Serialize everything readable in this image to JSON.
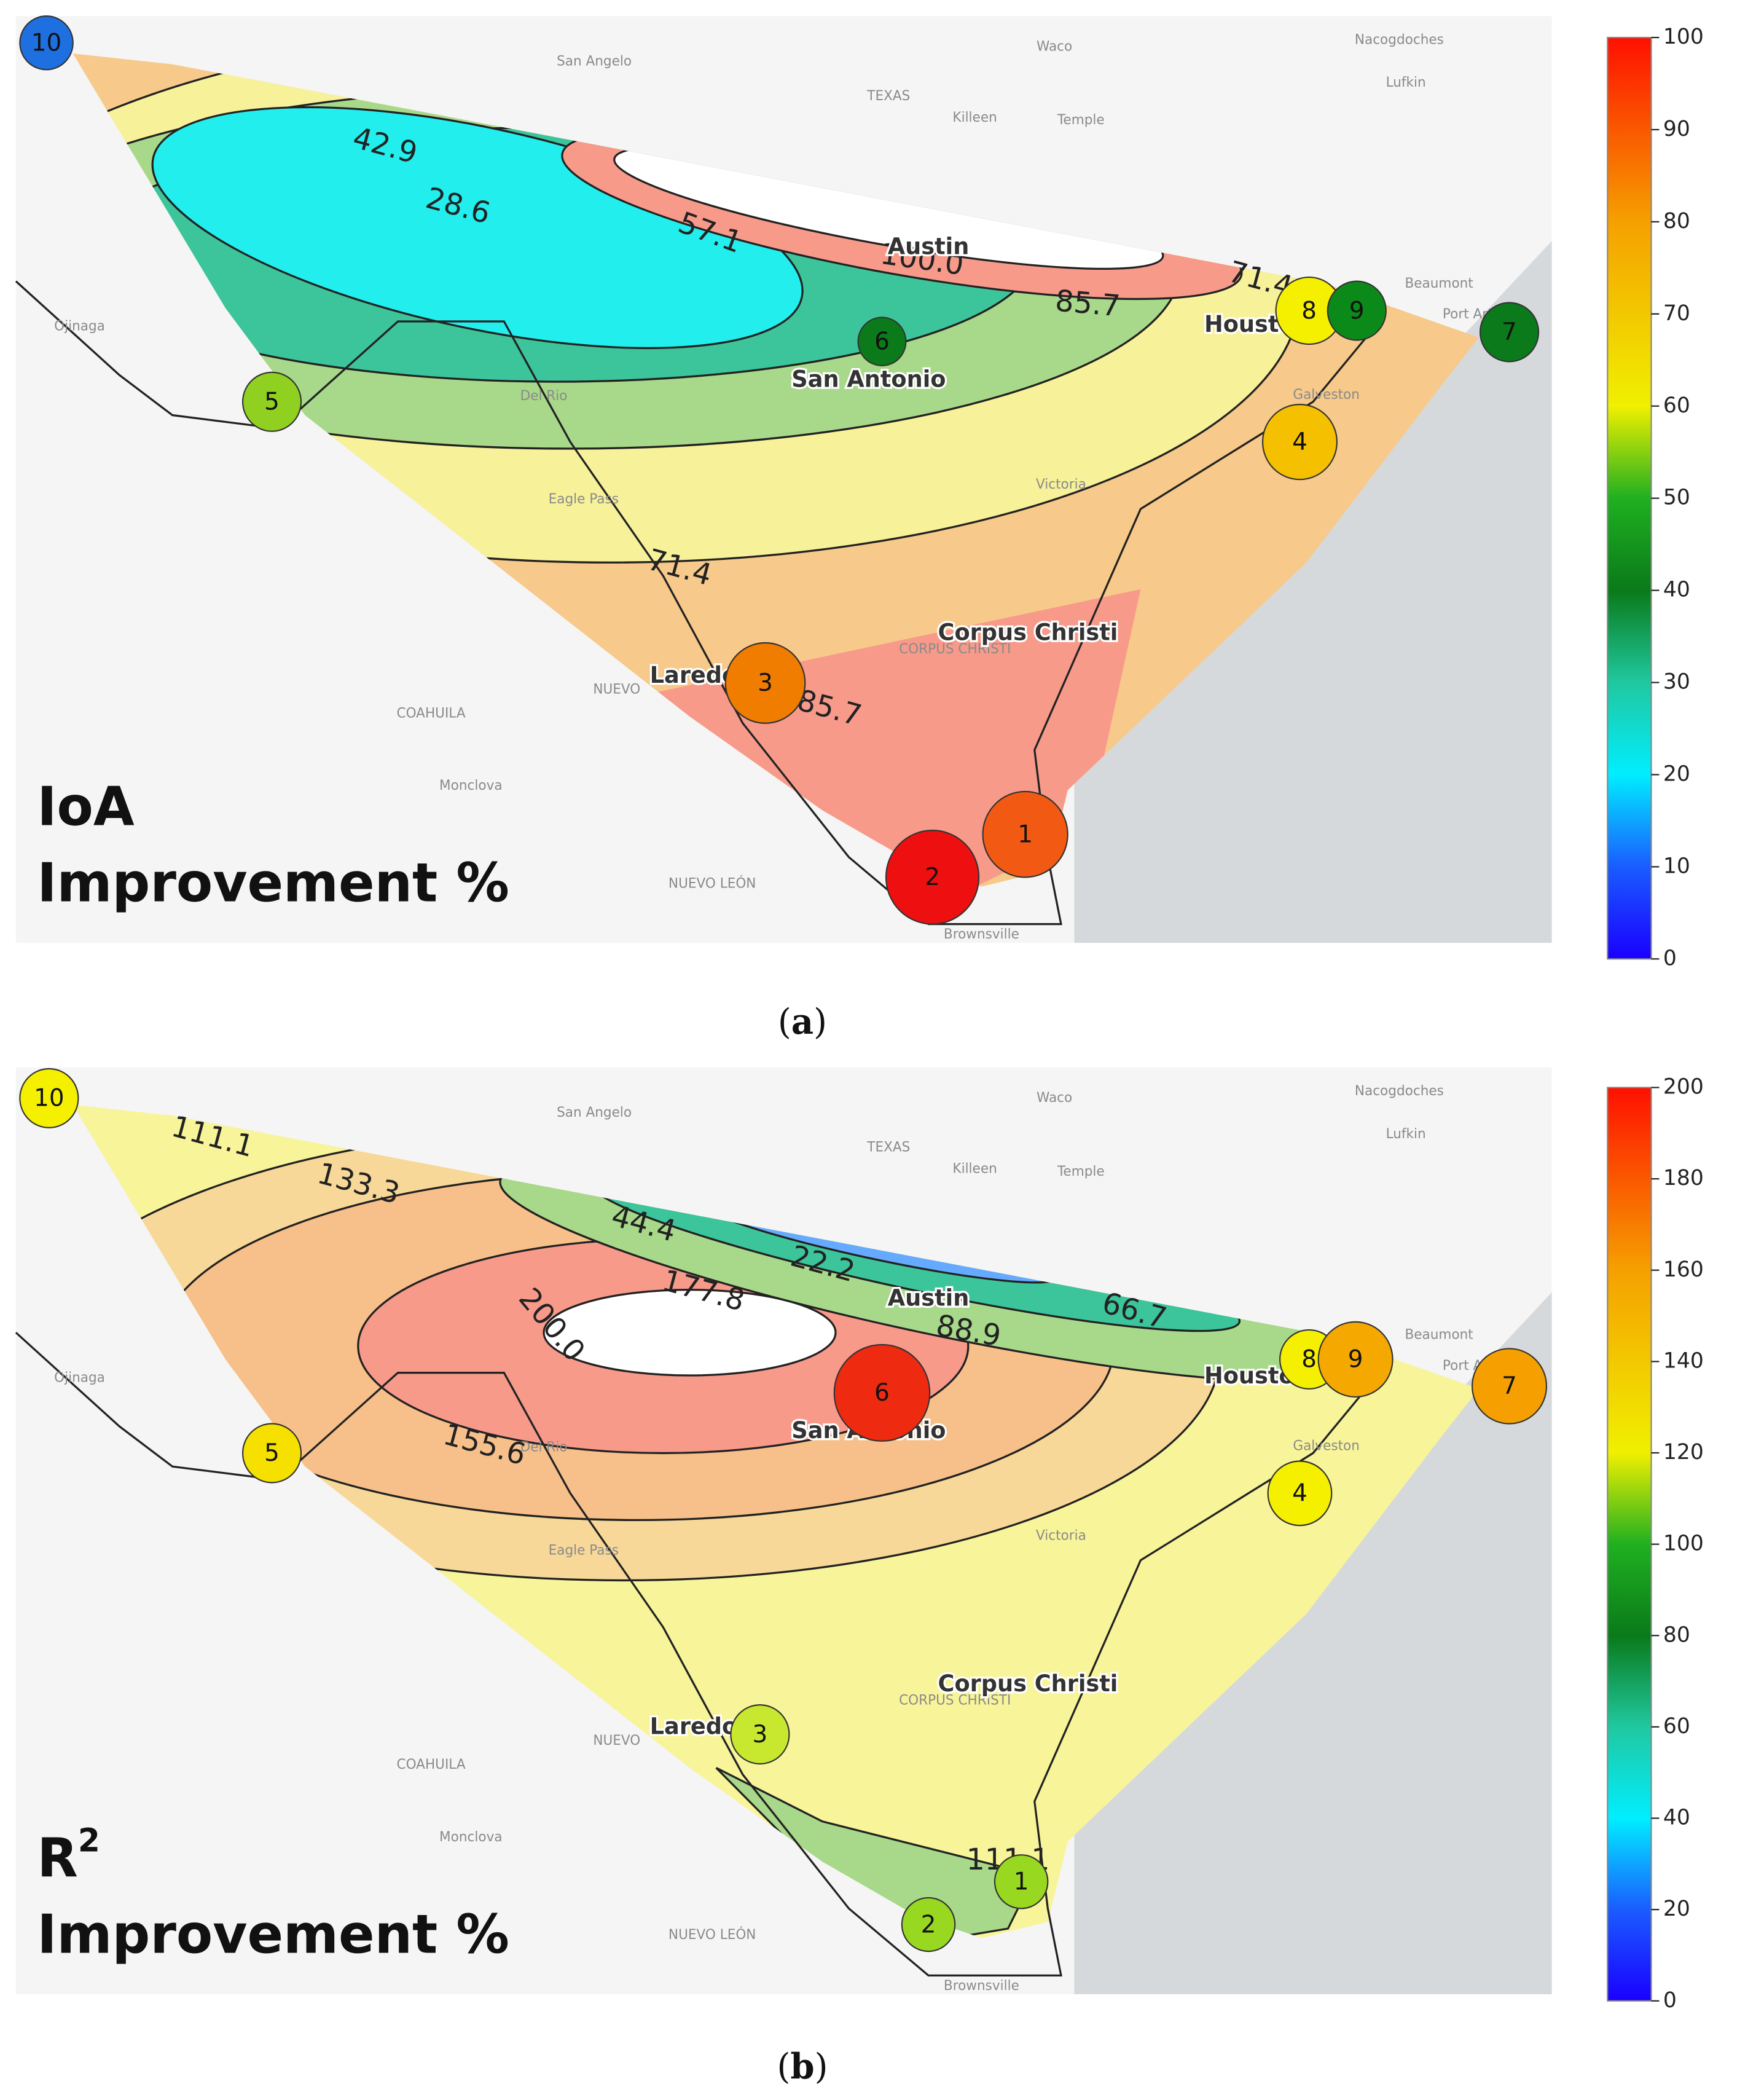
{
  "places": [
    "San Angelo",
    "Waco",
    "Nacogdoches",
    "TEXAS",
    "Killeen",
    "Temple",
    "Lufkin",
    "Beaumont",
    "Port Arthur",
    "Ojinaga",
    "Del Rio",
    "Eagle Pass",
    "Victoria",
    "Galveston",
    "COAHUILA",
    "NUEVO",
    "CORPUS CHRISTI",
    "Monclova",
    "NUEVO LEÓN",
    "Brownsville"
  ],
  "cities": [
    "Austin",
    "Houston",
    "San Antonio",
    "Corpus Christi",
    "Laredo"
  ],
  "panels": [
    {
      "panel_label": [
        "(",
        "a",
        ")"
      ],
      "title": {
        "line1": "IoA",
        "line2": "Improvement %"
      },
      "colorbar": {
        "ticks": [
          0,
          10,
          20,
          30,
          40,
          50,
          60,
          70,
          80,
          90,
          100
        ]
      },
      "contour_labels": [
        "42.9",
        "28.6",
        "57.1",
        "100.0",
        "71.4",
        "85.7",
        "71.4",
        "85.7"
      ],
      "stations": [
        {
          "label": "10",
          "color": "#1e6fe0"
        },
        {
          "label": "6",
          "color": "#0b7a1a"
        },
        {
          "label": "8",
          "color": "#f5f000"
        },
        {
          "label": "9",
          "color": "#0b8a1a"
        },
        {
          "label": "7",
          "color": "#0b7a1a"
        },
        {
          "label": "5",
          "color": "#8fd020"
        },
        {
          "label": "4",
          "color": "#f5c000"
        },
        {
          "label": "3",
          "color": "#f07c00"
        },
        {
          "label": "1",
          "color": "#f25a14"
        },
        {
          "label": "2",
          "color": "#ee1010"
        }
      ]
    },
    {
      "panel_label": [
        "(",
        "b",
        ")"
      ],
      "title": {
        "line1": "R",
        "sup": "2",
        "line2": "Improvement %"
      },
      "colorbar": {
        "ticks": [
          0,
          20,
          40,
          60,
          80,
          100,
          120,
          140,
          160,
          180,
          200
        ]
      },
      "contour_labels": [
        "111.1",
        "133.3",
        "44.4",
        "22.2",
        "177.8",
        "200.0",
        "66.7",
        "88.9",
        "155.6",
        "111.1"
      ],
      "stations": [
        {
          "label": "10",
          "color": "#f5f000"
        },
        {
          "label": "6",
          "color": "#ee2a10"
        },
        {
          "label": "8",
          "color": "#f5f000"
        },
        {
          "label": "9",
          "color": "#f5a800"
        },
        {
          "label": "7",
          "color": "#f5a000"
        },
        {
          "label": "5",
          "color": "#f5e000"
        },
        {
          "label": "4",
          "color": "#f5f000"
        },
        {
          "label": "3",
          "color": "#c8e830"
        },
        {
          "label": "1",
          "color": "#98d820"
        },
        {
          "label": "2",
          "color": "#98d820"
        }
      ]
    }
  ]
}
